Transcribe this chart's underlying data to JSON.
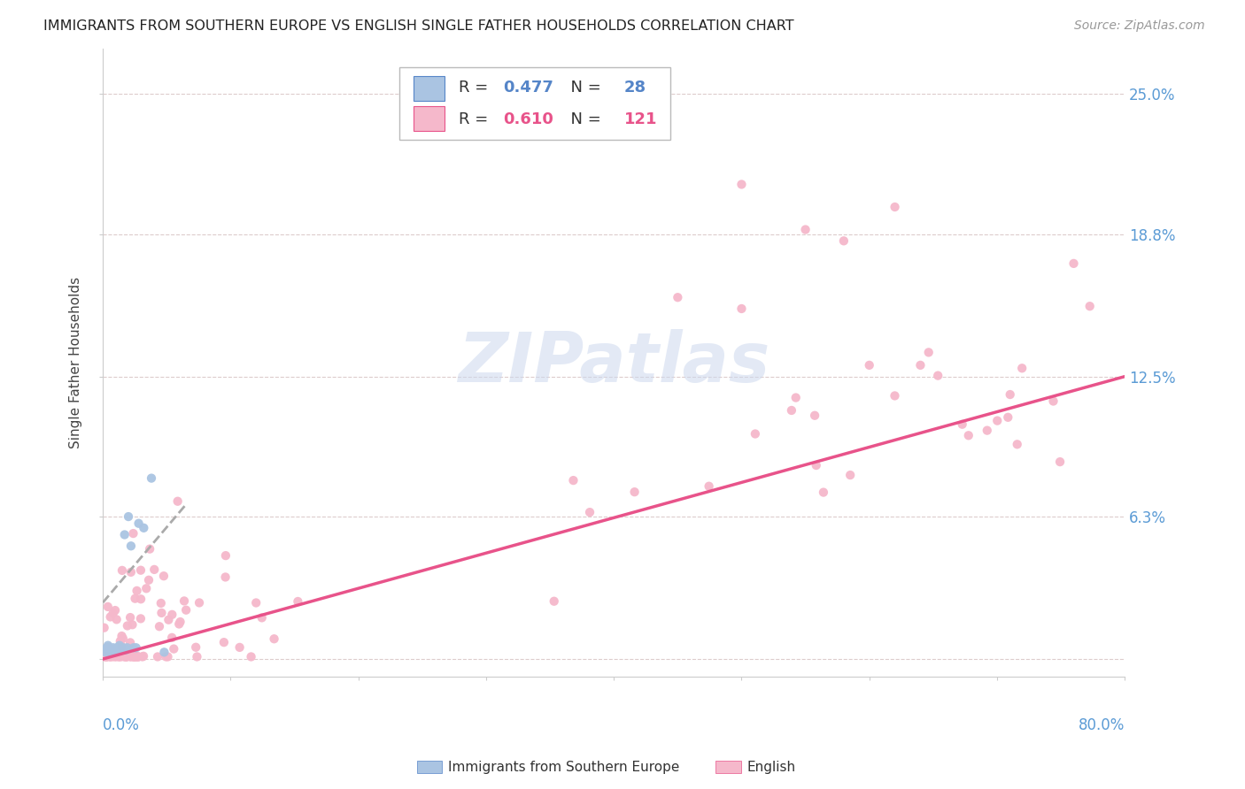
{
  "title": "IMMIGRANTS FROM SOUTHERN EUROPE VS ENGLISH SINGLE FATHER HOUSEHOLDS CORRELATION CHART",
  "source": "Source: ZipAtlas.com",
  "ylabel": "Single Father Households",
  "ytick_vals": [
    0.0,
    0.063,
    0.125,
    0.188,
    0.25
  ],
  "ytick_labels": [
    "",
    "6.3%",
    "12.5%",
    "18.8%",
    "25.0%"
  ],
  "xmin": 0.0,
  "xmax": 0.8,
  "ymin": -0.008,
  "ymax": 0.27,
  "blue_R": 0.477,
  "blue_N": 28,
  "pink_R": 0.61,
  "pink_N": 121,
  "blue_color": "#aac4e2",
  "blue_line_color": "#5585c8",
  "pink_color": "#f5b8cb",
  "pink_line_color": "#e8538a",
  "legend_label_blue": "Immigrants from Southern Europe",
  "legend_label_pink": "English"
}
